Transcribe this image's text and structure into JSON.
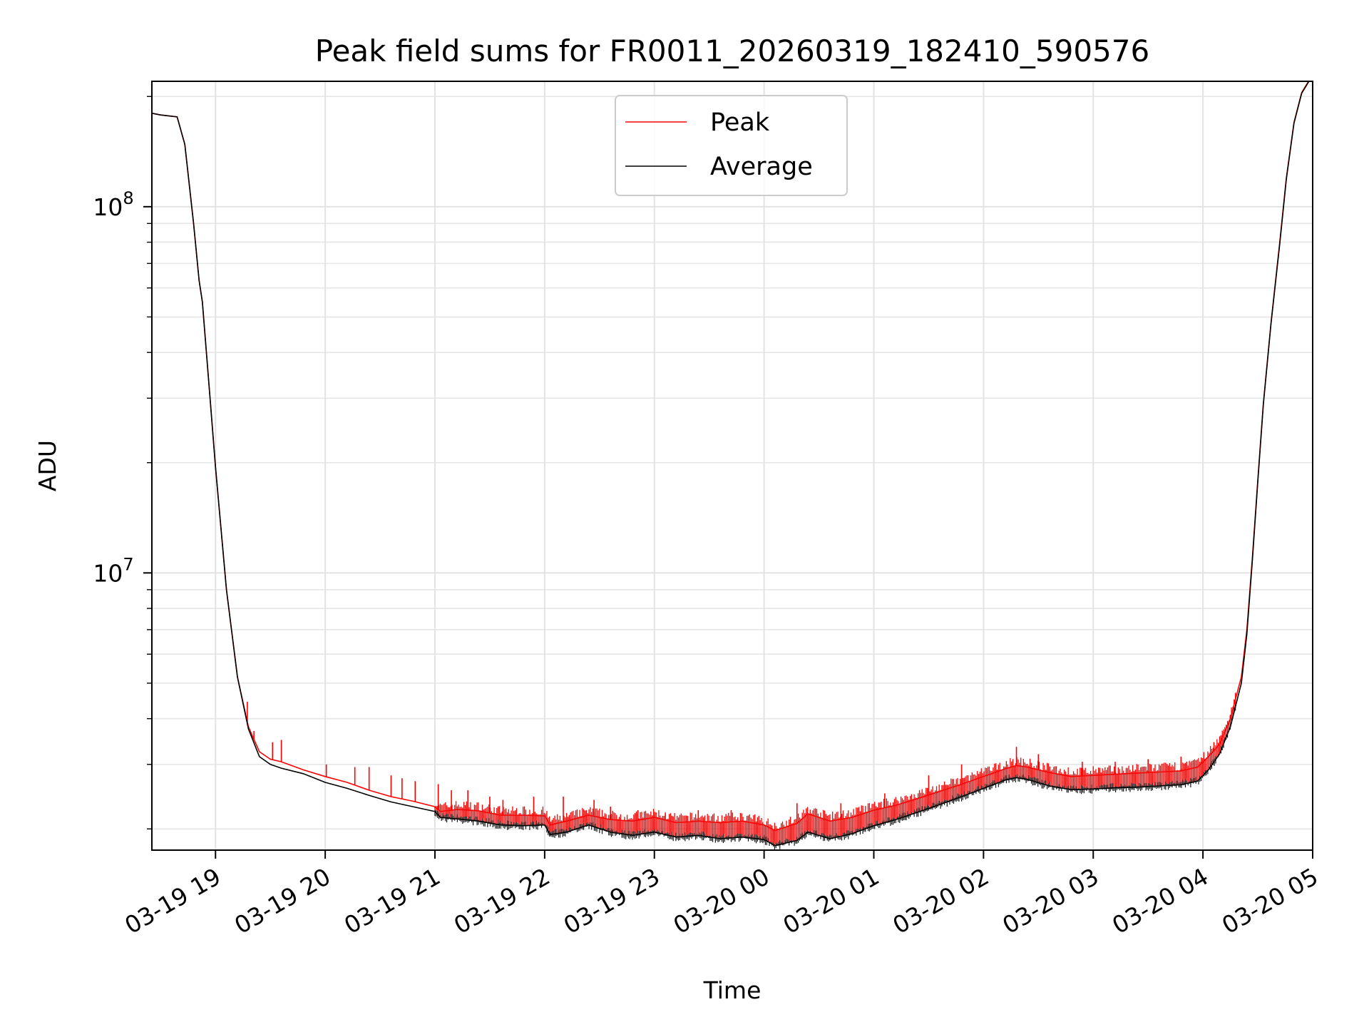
{
  "chart_data": {
    "type": "line",
    "title": "Peak field sums for FR0011_20260319_182410_590576",
    "xlabel": "Time",
    "ylabel": "ADU",
    "yscale": "log",
    "xlim_hours": [
      18.42,
      29.0
    ],
    "ylim": [
      1750000,
      220000000
    ],
    "grid": true,
    "legend_location": "upper center",
    "x_ticks": [
      {
        "hour": 19,
        "label": "03-19 19"
      },
      {
        "hour": 20,
        "label": "03-19 20"
      },
      {
        "hour": 21,
        "label": "03-19 21"
      },
      {
        "hour": 22,
        "label": "03-19 22"
      },
      {
        "hour": 23,
        "label": "03-19 23"
      },
      {
        "hour": 24,
        "label": "03-20 00"
      },
      {
        "hour": 25,
        "label": "03-20 01"
      },
      {
        "hour": 26,
        "label": "03-20 02"
      },
      {
        "hour": 27,
        "label": "03-20 03"
      },
      {
        "hour": 28,
        "label": "03-20 04"
      },
      {
        "hour": 29,
        "label": "03-20 05"
      }
    ],
    "y_major_ticks": [
      {
        "value": 10000000,
        "base": "10",
        "exp": "7"
      },
      {
        "value": 100000000,
        "base": "10",
        "exp": "8"
      }
    ],
    "series": [
      {
        "name": "Peak",
        "color": "#ff0000",
        "spikes": [
          [
            19.29,
            4450000
          ],
          [
            19.35,
            3700000
          ],
          [
            19.52,
            3450000
          ],
          [
            19.6,
            3500000
          ],
          [
            20.01,
            3000000
          ],
          [
            20.27,
            2950000
          ],
          [
            20.4,
            2950000
          ],
          [
            20.6,
            2800000
          ],
          [
            20.7,
            2750000
          ],
          [
            20.82,
            2700000
          ],
          [
            21.03,
            2650000
          ],
          [
            21.15,
            2550000
          ],
          [
            21.3,
            2550000
          ],
          [
            21.5,
            2450000
          ],
          [
            21.62,
            2400000
          ],
          [
            21.9,
            2450000
          ],
          [
            22.17,
            2450000
          ],
          [
            22.45,
            2400000
          ],
          [
            22.6,
            2300000
          ],
          [
            22.85,
            2250000
          ],
          [
            23.1,
            2200000
          ],
          [
            23.4,
            2250000
          ],
          [
            23.7,
            2250000
          ],
          [
            24.3,
            2350000
          ],
          [
            24.7,
            2350000
          ],
          [
            25.1,
            2500000
          ],
          [
            25.5,
            2800000
          ],
          [
            25.8,
            3000000
          ],
          [
            26.3,
            3350000
          ],
          [
            26.5,
            3200000
          ],
          [
            26.9,
            3050000
          ],
          [
            27.2,
            3050000
          ],
          [
            27.5,
            3100000
          ],
          [
            27.8,
            3150000
          ],
          [
            28.1,
            3450000
          ],
          [
            28.25,
            4100000
          ]
        ],
        "points": [
          [
            18.42,
            180000000
          ],
          [
            18.5,
            178000000
          ],
          [
            18.65,
            176000000
          ],
          [
            18.72,
            148000000
          ],
          [
            18.8,
            90000000
          ],
          [
            18.85,
            63000000
          ],
          [
            18.88,
            55000000
          ],
          [
            18.95,
            30000000
          ],
          [
            19.0,
            19500000
          ],
          [
            19.1,
            9000000
          ],
          [
            19.2,
            5200000
          ],
          [
            19.3,
            3800000
          ],
          [
            19.4,
            3250000
          ],
          [
            19.5,
            3100000
          ],
          [
            19.6,
            3050000
          ],
          [
            19.8,
            2900000
          ],
          [
            20.0,
            2780000
          ],
          [
            20.2,
            2680000
          ],
          [
            20.4,
            2550000
          ],
          [
            20.6,
            2450000
          ],
          [
            20.8,
            2380000
          ],
          [
            21.0,
            2300000
          ],
          [
            21.05,
            2230000
          ],
          [
            21.2,
            2260000
          ],
          [
            21.4,
            2240000
          ],
          [
            21.6,
            2180000
          ],
          [
            21.8,
            2180000
          ],
          [
            22.0,
            2170000
          ],
          [
            22.05,
            2050000
          ],
          [
            22.2,
            2100000
          ],
          [
            22.4,
            2180000
          ],
          [
            22.6,
            2120000
          ],
          [
            22.8,
            2100000
          ],
          [
            23.0,
            2150000
          ],
          [
            23.2,
            2080000
          ],
          [
            23.4,
            2100000
          ],
          [
            23.6,
            2080000
          ],
          [
            23.8,
            2100000
          ],
          [
            24.0,
            2050000
          ],
          [
            24.1,
            1980000
          ],
          [
            24.3,
            2070000
          ],
          [
            24.4,
            2200000
          ],
          [
            24.6,
            2100000
          ],
          [
            24.8,
            2150000
          ],
          [
            25.0,
            2250000
          ],
          [
            25.2,
            2320000
          ],
          [
            25.4,
            2420000
          ],
          [
            25.6,
            2530000
          ],
          [
            25.8,
            2650000
          ],
          [
            26.0,
            2780000
          ],
          [
            26.2,
            2920000
          ],
          [
            26.3,
            2980000
          ],
          [
            26.4,
            2950000
          ],
          [
            26.6,
            2850000
          ],
          [
            26.8,
            2780000
          ],
          [
            27.0,
            2800000
          ],
          [
            27.2,
            2820000
          ],
          [
            27.4,
            2840000
          ],
          [
            27.6,
            2860000
          ],
          [
            27.8,
            2880000
          ],
          [
            27.95,
            2950000
          ],
          [
            28.05,
            3150000
          ],
          [
            28.15,
            3400000
          ],
          [
            28.25,
            4000000
          ],
          [
            28.35,
            5200000
          ],
          [
            28.4,
            7000000
          ],
          [
            28.45,
            11000000
          ],
          [
            28.5,
            18000000
          ],
          [
            28.55,
            29000000
          ],
          [
            28.62,
            48000000
          ],
          [
            28.7,
            80000000
          ],
          [
            28.76,
            120000000
          ],
          [
            28.83,
            170000000
          ],
          [
            28.9,
            205000000
          ],
          [
            28.97,
            222000000
          ]
        ]
      },
      {
        "name": "Average",
        "color": "#000000",
        "points": [
          [
            18.42,
            180000000
          ],
          [
            18.5,
            178000000
          ],
          [
            18.65,
            176000000
          ],
          [
            18.72,
            148000000
          ],
          [
            18.8,
            90000000
          ],
          [
            18.85,
            63000000
          ],
          [
            18.88,
            55000000
          ],
          [
            18.95,
            30000000
          ],
          [
            19.0,
            19500000
          ],
          [
            19.1,
            9000000
          ],
          [
            19.2,
            5200000
          ],
          [
            19.3,
            3750000
          ],
          [
            19.4,
            3150000
          ],
          [
            19.5,
            3000000
          ],
          [
            19.6,
            2930000
          ],
          [
            19.8,
            2830000
          ],
          [
            20.0,
            2680000
          ],
          [
            20.2,
            2580000
          ],
          [
            20.4,
            2470000
          ],
          [
            20.6,
            2370000
          ],
          [
            20.8,
            2300000
          ],
          [
            21.0,
            2230000
          ],
          [
            21.05,
            2150000
          ],
          [
            21.2,
            2130000
          ],
          [
            21.4,
            2100000
          ],
          [
            21.6,
            2050000
          ],
          [
            21.8,
            2040000
          ],
          [
            22.0,
            2050000
          ],
          [
            22.05,
            1930000
          ],
          [
            22.2,
            1960000
          ],
          [
            22.4,
            2050000
          ],
          [
            22.6,
            1960000
          ],
          [
            22.8,
            1920000
          ],
          [
            23.0,
            1960000
          ],
          [
            23.2,
            1900000
          ],
          [
            23.4,
            1920000
          ],
          [
            23.6,
            1880000
          ],
          [
            23.8,
            1900000
          ],
          [
            24.0,
            1870000
          ],
          [
            24.1,
            1800000
          ],
          [
            24.3,
            1860000
          ],
          [
            24.4,
            1960000
          ],
          [
            24.6,
            1880000
          ],
          [
            24.8,
            1940000
          ],
          [
            25.0,
            2040000
          ],
          [
            25.2,
            2120000
          ],
          [
            25.4,
            2220000
          ],
          [
            25.6,
            2330000
          ],
          [
            25.8,
            2450000
          ],
          [
            26.0,
            2580000
          ],
          [
            26.2,
            2720000
          ],
          [
            26.3,
            2760000
          ],
          [
            26.4,
            2730000
          ],
          [
            26.6,
            2620000
          ],
          [
            26.8,
            2560000
          ],
          [
            27.0,
            2570000
          ],
          [
            27.2,
            2590000
          ],
          [
            27.4,
            2600000
          ],
          [
            27.6,
            2620000
          ],
          [
            27.8,
            2640000
          ],
          [
            27.95,
            2700000
          ],
          [
            28.05,
            2900000
          ],
          [
            28.15,
            3200000
          ],
          [
            28.25,
            3800000
          ],
          [
            28.35,
            5000000
          ],
          [
            28.4,
            6800000
          ],
          [
            28.45,
            10800000
          ],
          [
            28.5,
            17800000
          ],
          [
            28.55,
            28800000
          ],
          [
            28.62,
            47800000
          ],
          [
            28.7,
            79000000
          ],
          [
            28.76,
            119000000
          ],
          [
            28.83,
            169000000
          ],
          [
            28.9,
            204000000
          ],
          [
            28.97,
            221000000
          ]
        ]
      }
    ]
  }
}
